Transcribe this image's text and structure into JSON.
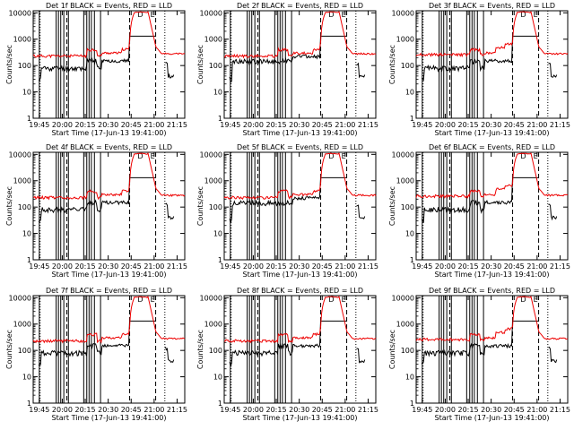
{
  "colors": {
    "events": "#000000",
    "lld": "#ee0000",
    "axis": "#000000",
    "background": "#ffffff"
  },
  "common": {
    "xlabel": "Start Time (17-Jun-13 19:41:00)",
    "ylabel": "Counts/sec",
    "x_ticks": [
      "19:45",
      "20:00",
      "20:15",
      "20:30",
      "20:45",
      "21:00",
      "21:15"
    ],
    "y_ticks": [
      "1",
      "10",
      "100",
      "1000",
      "10000"
    ],
    "corner_labels": [
      "D",
      "E"
    ]
  },
  "chart_data": [
    {
      "type": "line",
      "title": "Det 1f BLACK = Events, RED = LLD",
      "ylim": [
        1,
        12000
      ],
      "xlim_minutes": [
        0,
        99
      ],
      "yscale": "log",
      "profile": "standard"
    },
    {
      "type": "line",
      "title": "Det 2f BLACK = Events, RED = LLD",
      "ylim": [
        1,
        12000
      ],
      "xlim_minutes": [
        0,
        99
      ],
      "yscale": "log",
      "profile": "flat"
    },
    {
      "type": "line",
      "title": "Det 3f BLACK = Events, RED = LLD",
      "ylim": [
        1,
        12000
      ],
      "xlim_minutes": [
        0,
        99
      ],
      "yscale": "log",
      "profile": "noisy"
    },
    {
      "type": "line",
      "title": "Det 4f BLACK = Events, RED = LLD",
      "ylim": [
        1,
        12000
      ],
      "xlim_minutes": [
        0,
        99
      ],
      "yscale": "log",
      "profile": "standard"
    },
    {
      "type": "line",
      "title": "Det 5f BLACK = Events, RED = LLD",
      "ylim": [
        1,
        12000
      ],
      "xlim_minutes": [
        0,
        99
      ],
      "yscale": "log",
      "profile": "flat"
    },
    {
      "type": "line",
      "title": "Det 6f BLACK = Events, RED = LLD",
      "ylim": [
        1,
        12000
      ],
      "xlim_minutes": [
        0,
        99
      ],
      "yscale": "log",
      "profile": "noisy"
    },
    {
      "type": "line",
      "title": "Det 7f BLACK = Events, RED = LLD",
      "ylim": [
        1,
        12000
      ],
      "xlim_minutes": [
        0,
        99
      ],
      "yscale": "log",
      "profile": "standard"
    },
    {
      "type": "line",
      "title": "Det 8f BLACK = Events, RED = LLD",
      "ylim": [
        1,
        12000
      ],
      "xlim_minutes": [
        0,
        99
      ],
      "yscale": "log",
      "profile": "standard"
    },
    {
      "type": "line",
      "title": "Det 9f BLACK = Events, RED = LLD",
      "ylim": [
        1,
        12000
      ],
      "xlim_minutes": [
        0,
        99
      ],
      "yscale": "log",
      "profile": "noisy"
    }
  ],
  "series_model": {
    "events": {
      "name": "Events",
      "base": 80,
      "pre_flare": 150,
      "flare_high": 1300
    },
    "lld": {
      "name": "LLD",
      "base": 230,
      "pre_flare": 400,
      "flare_peak": 11000,
      "tail": 280
    }
  },
  "markers": {
    "dashed_minutes": [
      22,
      63,
      80
    ],
    "dotted_minutes": [
      4.5,
      86
    ],
    "solid_minutes": [
      4,
      15,
      16.5,
      18,
      20,
      23,
      33,
      35,
      36.5,
      38,
      40,
      44
    ],
    "corner_label_minutes": [
      70,
      78
    ]
  }
}
